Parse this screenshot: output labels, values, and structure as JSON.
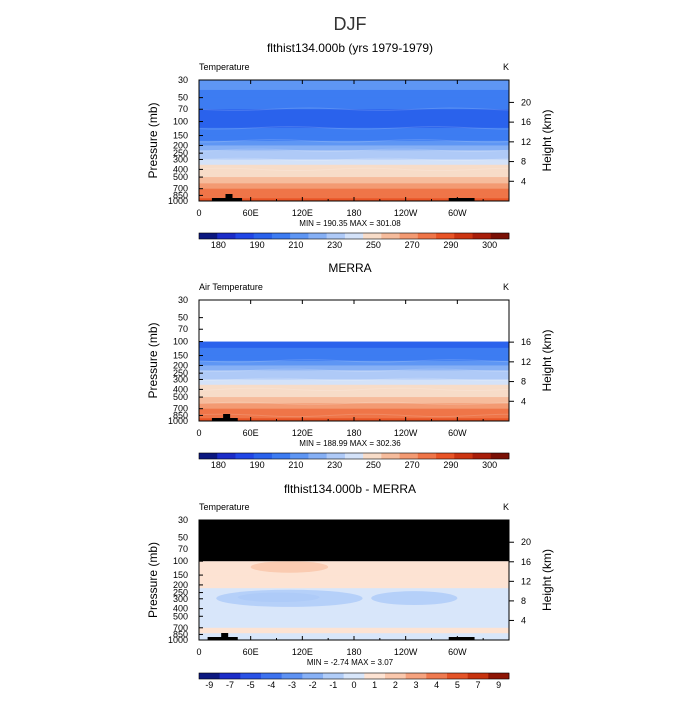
{
  "figure": {
    "suptitle": "DJF",
    "season": "DJF"
  },
  "colors": {
    "temp_levels": [
      "#0c1880",
      "#1b2cc8",
      "#2146e6",
      "#2a62ec",
      "#3d7cf2",
      "#5e96f4",
      "#86b0f5",
      "#afcaf7",
      "#d4e2f8",
      "#f7dcc8",
      "#f6bc9c",
      "#f39a72",
      "#ef7548",
      "#e85426",
      "#cc3512",
      "#a81e0a",
      "#7a1005"
    ],
    "diff_levels": [
      "#0c1880",
      "#1b2cc8",
      "#2a52e6",
      "#3d72ef",
      "#5e92f3",
      "#88b1f5",
      "#b1cdf8",
      "#d8e6fa",
      "#fde3d3",
      "#fac8ad",
      "#f6a37f",
      "#ef7a50",
      "#e45428",
      "#c7330f",
      "#8e1505"
    ],
    "mask": "#000000",
    "axis": "#000000"
  },
  "chart_data": [
    {
      "type": "heatmap",
      "panel": "model",
      "title": "flthist134.000b (yrs 1979-1979)",
      "left_label": "Temperature",
      "units": "K",
      "ylabel": "Pressure (mb)",
      "ylabel_right": "Height (km)",
      "xlabel": "",
      "x_ticks": [
        "0",
        "60E",
        "120E",
        "180",
        "120W",
        "60W"
      ],
      "x_tick_lon": [
        0,
        60,
        120,
        180,
        240,
        300
      ],
      "xlim": [
        0,
        360
      ],
      "y_ticks": [
        30,
        50,
        70,
        100,
        150,
        200,
        250,
        300,
        400,
        500,
        700,
        850,
        1000
      ],
      "ylim": [
        1000,
        30
      ],
      "right_ticks": [
        4,
        8,
        12,
        16,
        20
      ],
      "min": "190.35",
      "max": "301.08",
      "min_max_text": "MIN = 190.35   MAX = 301.08",
      "colorbar_labels": [
        "180",
        "190",
        "210",
        "230",
        "250",
        "270",
        "290",
        "300"
      ],
      "levels": [
        180,
        185,
        190,
        200,
        210,
        220,
        230,
        240,
        250,
        260,
        270,
        280,
        290,
        295,
        300,
        305
      ],
      "profile": [
        {
          "p": 30,
          "value": 213
        },
        {
          "p": 40,
          "value": 210
        },
        {
          "p": 50,
          "value": 206
        },
        {
          "p": 70,
          "value": 200
        },
        {
          "p": 100,
          "value": 199
        },
        {
          "p": 120,
          "value": 200
        },
        {
          "p": 150,
          "value": 206
        },
        {
          "p": 175,
          "value": 212
        },
        {
          "p": 200,
          "value": 218
        },
        {
          "p": 230,
          "value": 226
        },
        {
          "p": 260,
          "value": 234
        },
        {
          "p": 300,
          "value": 242
        },
        {
          "p": 350,
          "value": 249
        },
        {
          "p": 400,
          "value": 254
        },
        {
          "p": 500,
          "value": 263
        },
        {
          "p": 600,
          "value": 270
        },
        {
          "p": 700,
          "value": 276
        },
        {
          "p": 850,
          "value": 284
        },
        {
          "p": 925,
          "value": 288
        },
        {
          "p": 1000,
          "value": 292
        }
      ],
      "missing_top": null,
      "surface_mask": [
        [
          15,
          50
        ],
        [
          290,
          320
        ]
      ]
    },
    {
      "type": "heatmap",
      "panel": "obs",
      "title": "MERRA",
      "left_label": "Air Temperature",
      "units": "K",
      "ylabel": "Pressure (mb)",
      "ylabel_right": "Height (km)",
      "xlabel": "",
      "x_ticks": [
        "0",
        "60E",
        "120E",
        "180",
        "120W",
        "60W"
      ],
      "x_tick_lon": [
        0,
        60,
        120,
        180,
        240,
        300
      ],
      "xlim": [
        0,
        360
      ],
      "y_ticks": [
        30,
        50,
        70,
        100,
        150,
        200,
        250,
        300,
        400,
        500,
        700,
        850,
        1000
      ],
      "ylim": [
        1000,
        30
      ],
      "right_ticks": [
        4,
        8,
        12,
        16
      ],
      "min": "188.99",
      "max": "302.36",
      "min_max_text": "MIN = 188.99   MAX = 302.36",
      "colorbar_labels": [
        "180",
        "190",
        "210",
        "230",
        "250",
        "270",
        "290",
        "300"
      ],
      "levels": [
        180,
        185,
        190,
        200,
        210,
        220,
        230,
        240,
        250,
        260,
        270,
        280,
        290,
        295,
        300,
        305
      ],
      "profile": [
        {
          "p": 100,
          "value": 199
        },
        {
          "p": 120,
          "value": 200
        },
        {
          "p": 150,
          "value": 206
        },
        {
          "p": 175,
          "value": 212
        },
        {
          "p": 200,
          "value": 218
        },
        {
          "p": 230,
          "value": 226
        },
        {
          "p": 260,
          "value": 234
        },
        {
          "p": 300,
          "value": 242
        },
        {
          "p": 350,
          "value": 249
        },
        {
          "p": 400,
          "value": 254
        },
        {
          "p": 500,
          "value": 263
        },
        {
          "p": 600,
          "value": 270
        },
        {
          "p": 700,
          "value": 276
        },
        {
          "p": 850,
          "value": 284
        },
        {
          "p": 925,
          "value": 289
        },
        {
          "p": 1000,
          "value": 293
        }
      ],
      "missing_top": null,
      "blank_above": 100,
      "surface_mask": [
        [
          15,
          45
        ]
      ]
    },
    {
      "type": "heatmap",
      "panel": "diff",
      "title": "flthist134.000b - MERRA",
      "left_label": "Temperature",
      "units": "K",
      "ylabel": "Pressure (mb)",
      "ylabel_right": "Height (km)",
      "xlabel": "",
      "x_ticks": [
        "0",
        "60E",
        "120E",
        "180",
        "120W",
        "60W"
      ],
      "x_tick_lon": [
        0,
        60,
        120,
        180,
        240,
        300
      ],
      "xlim": [
        0,
        360
      ],
      "y_ticks": [
        30,
        50,
        70,
        100,
        150,
        200,
        250,
        300,
        400,
        500,
        700,
        850,
        1000
      ],
      "ylim": [
        1000,
        30
      ],
      "right_ticks": [
        4,
        8,
        12,
        16,
        20
      ],
      "min": "-2.74",
      "max": "3.07",
      "min_max_text": "MIN = -2.74   MAX = 3.07",
      "colorbar_labels": [
        "-9",
        "-7",
        "-5",
        "-4",
        "-3",
        "-2",
        "-1",
        "0",
        "1",
        "2",
        "3",
        "4",
        "5",
        "7",
        "9"
      ],
      "bands": [
        {
          "p_top": 100,
          "p_bot": 150,
          "value": 0.6
        },
        {
          "p_top": 150,
          "p_bot": 220,
          "value": 0.3
        },
        {
          "p_top": 220,
          "p_bot": 400,
          "value": -0.6
        },
        {
          "p_top": 400,
          "p_bot": 700,
          "value": -0.4
        },
        {
          "p_top": 700,
          "p_bot": 820,
          "value": 0.5
        },
        {
          "p_top": 820,
          "p_bot": 1000,
          "value": -0.4
        }
      ],
      "features": [
        {
          "lon_start": 45,
          "lon_end": 140,
          "p_top": 250,
          "p_bot": 330,
          "value": -2.4
        },
        {
          "lon_start": 20,
          "lon_end": 190,
          "p_top": 230,
          "p_bot": 380,
          "value": -1.6
        },
        {
          "lon_start": 200,
          "lon_end": 300,
          "p_top": 240,
          "p_bot": 360,
          "value": -1.3
        },
        {
          "lon_start": 60,
          "lon_end": 150,
          "p_top": 100,
          "p_bot": 140,
          "value": 1.3
        }
      ],
      "missing_top": 100,
      "surface_mask": [
        [
          10,
          45
        ],
        [
          290,
          320
        ]
      ]
    }
  ]
}
